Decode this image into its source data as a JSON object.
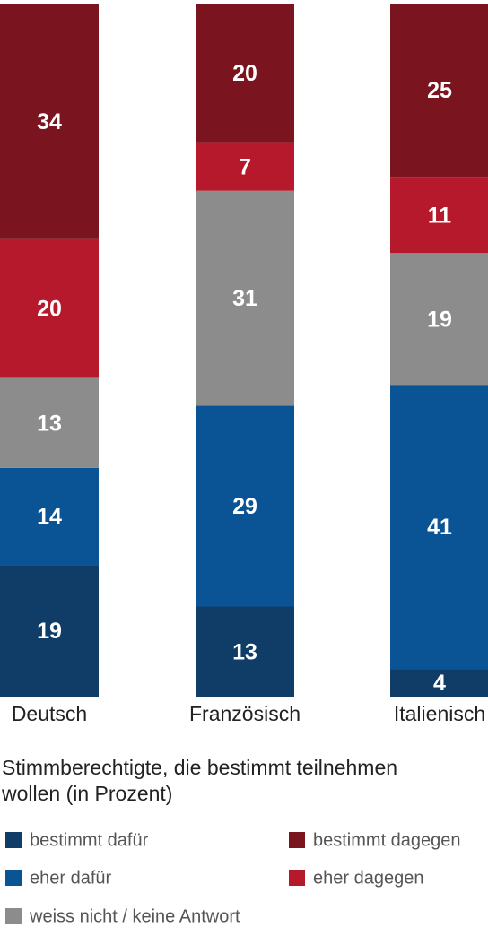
{
  "chart_data": {
    "type": "stacked-bar",
    "title": "Stimmberechtigte, die bestimmt teilnehmen wollen (in Prozent)",
    "categories": [
      "Deutsch",
      "Französisch",
      "Italienisch"
    ],
    "series": [
      {
        "name": "bestimmt dafür",
        "color": "#0f3d68",
        "values": [
          19,
          13,
          4
        ]
      },
      {
        "name": "eher dafür",
        "color": "#0a5496",
        "values": [
          14,
          29,
          41
        ]
      },
      {
        "name": "weiss nicht / keine Antwort",
        "color": "#8c8c8c",
        "values": [
          13,
          31,
          19
        ]
      },
      {
        "name": "eher dagegen",
        "color": "#b5192b",
        "values": [
          20,
          7,
          11
        ]
      },
      {
        "name": "bestimmt dagegen",
        "color": "#7a141f",
        "values": [
          34,
          20,
          25
        ]
      }
    ],
    "ylim": [
      0,
      100
    ]
  }
}
